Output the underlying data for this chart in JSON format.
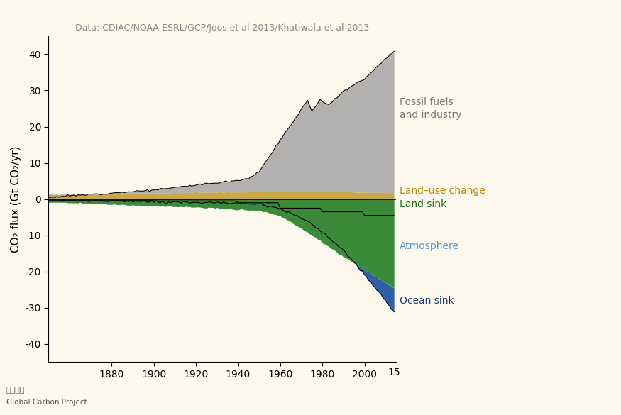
{
  "title": "Data: CDIAC/NOAA-ESRL/GCP/Joos et al 2013/Khatiwala et al 2013",
  "ylabel": "CO₂ flux (Gt CO₂/yr)",
  "background_color": "#fdf8ec",
  "fig_background": "#fdf8ec",
  "xlim": [
    1850,
    2015
  ],
  "ylim": [
    -45,
    45
  ],
  "yticks": [
    -40,
    -30,
    -20,
    -10,
    0,
    10,
    20,
    30,
    40
  ],
  "xticks": [
    1880,
    1900,
    1920,
    1940,
    1960,
    1980,
    2000
  ],
  "xlabel_extra": "15",
  "colors": {
    "fossil": "#aaaaaa",
    "land_use": "#c8a84b",
    "land_sink": "#3a8a3a",
    "atmosphere": "#add8e6",
    "ocean_sink": "#2f5fa5"
  },
  "label_colors": {
    "fossil": "#777777",
    "land_use": "#b8860b",
    "land_sink": "#1a6a1a",
    "atmosphere": "#5599cc",
    "ocean_sink": "#1a3a7a"
  },
  "copyright_text": "Global Carbon Project",
  "title_color": "#888888"
}
